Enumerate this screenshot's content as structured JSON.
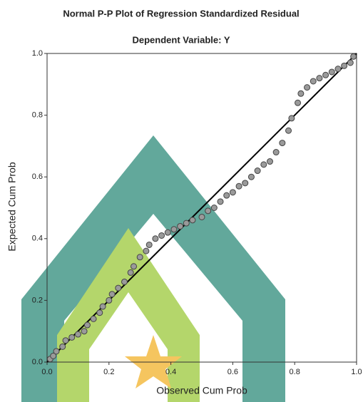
{
  "chart_data": {
    "type": "scatter",
    "title": "Normal P-P Plot of Regression Standardized Residual",
    "subtitle": "Dependent Variable: Y",
    "x_label": "Observed Cum Prob",
    "y_label": "Expected Cum Prob",
    "x": [
      0.01,
      0.02,
      0.03,
      0.05,
      0.06,
      0.08,
      0.1,
      0.12,
      0.13,
      0.15,
      0.17,
      0.18,
      0.2,
      0.21,
      0.23,
      0.25,
      0.27,
      0.28,
      0.3,
      0.32,
      0.33,
      0.35,
      0.37,
      0.39,
      0.41,
      0.43,
      0.45,
      0.47,
      0.5,
      0.52,
      0.54,
      0.56,
      0.58,
      0.6,
      0.62,
      0.64,
      0.66,
      0.68,
      0.7,
      0.72,
      0.74,
      0.76,
      0.78,
      0.79,
      0.81,
      0.82,
      0.84,
      0.86,
      0.88,
      0.9,
      0.92,
      0.94,
      0.96,
      0.98,
      0.99
    ],
    "values": [
      0.01,
      0.02,
      0.035,
      0.05,
      0.07,
      0.08,
      0.09,
      0.1,
      0.12,
      0.14,
      0.16,
      0.18,
      0.2,
      0.22,
      0.24,
      0.26,
      0.29,
      0.31,
      0.34,
      0.36,
      0.38,
      0.4,
      0.41,
      0.42,
      0.43,
      0.44,
      0.45,
      0.46,
      0.47,
      0.49,
      0.5,
      0.52,
      0.54,
      0.55,
      0.57,
      0.58,
      0.6,
      0.62,
      0.64,
      0.65,
      0.68,
      0.71,
      0.75,
      0.79,
      0.84,
      0.87,
      0.89,
      0.91,
      0.92,
      0.93,
      0.94,
      0.95,
      0.96,
      0.97,
      0.99
    ],
    "color": "#9a9a9a",
    "reference_line": true,
    "xlim": [
      0,
      1
    ],
    "ylim": [
      0,
      1
    ],
    "xticks": [
      {
        "value": 0,
        "label": "0.0"
      },
      {
        "value": 0.2,
        "label": "0.2"
      },
      {
        "value": 0.4,
        "label": "0.4"
      },
      {
        "value": 0.6,
        "label": "0.6"
      },
      {
        "value": 0.8,
        "label": "0.8"
      },
      {
        "value": 1,
        "label": "1.0"
      }
    ],
    "yticks": [
      {
        "value": 0,
        "label": "0.0"
      },
      {
        "value": 0.2,
        "label": "0.2"
      },
      {
        "value": 0.4,
        "label": "0.4"
      },
      {
        "value": 0.6,
        "label": "0.6"
      },
      {
        "value": 0.8,
        "label": "0.8"
      },
      {
        "value": 1,
        "label": "1.0"
      }
    ]
  }
}
